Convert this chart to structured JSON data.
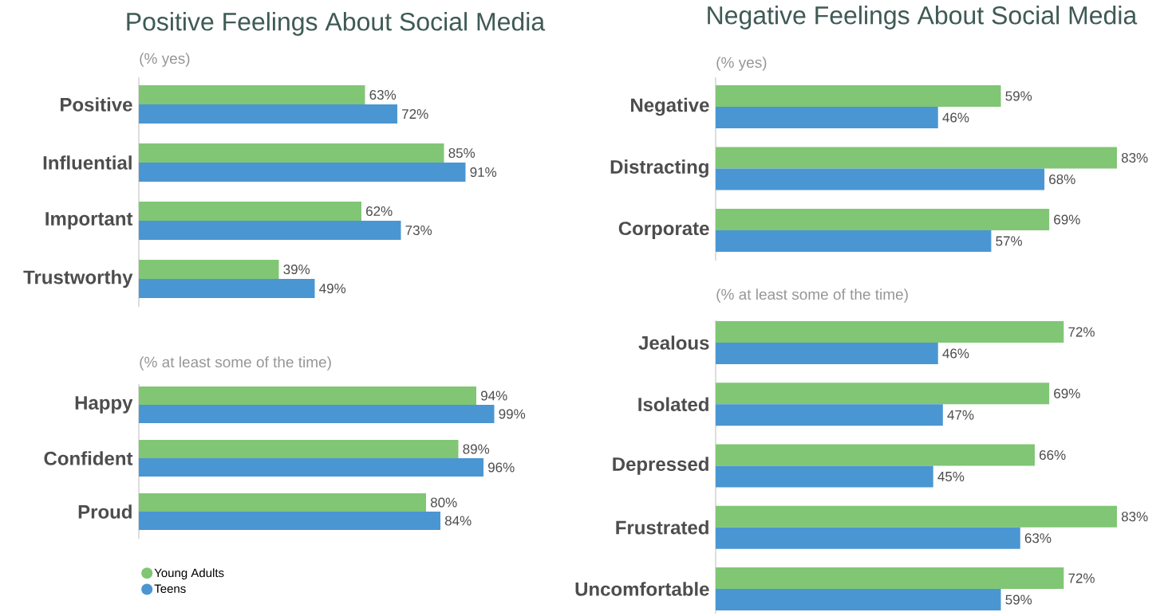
{
  "chart_data": [
    {
      "type": "bar",
      "orientation": "horizontal",
      "title": "Positive Feelings About Social Media",
      "subtitle": "(% yes)",
      "categories": [
        "Positive",
        "Influential",
        "Important",
        "Trustworthy"
      ],
      "series": [
        {
          "color": "#80c675",
          "values": [
            63,
            85,
            62,
            39
          ],
          "value_labels": [
            "63%",
            "85%",
            "62%",
            "39%"
          ]
        },
        {
          "color": "#4a96d2",
          "values": [
            72,
            91,
            73,
            49
          ],
          "value_labels": [
            "72%",
            "91%",
            "73%",
            "49%"
          ]
        }
      ]
    },
    {
      "type": "bar",
      "orientation": "horizontal",
      "subtitle": "(% at least some of the time)",
      "categories": [
        "Happy",
        "Confident",
        "Proud"
      ],
      "legend": "bottom left",
      "series": [
        {
          "name": "Young Adults",
          "color": "#80c675",
          "values": [
            94,
            89,
            80
          ],
          "value_labels": [
            "94%",
            "89%",
            "80%"
          ]
        },
        {
          "name": "Teens",
          "color": "#4a96d2",
          "values": [
            99,
            96,
            84
          ],
          "value_labels": [
            "99%",
            "96%",
            "84%"
          ]
        }
      ]
    },
    {
      "type": "bar",
      "orientation": "horizontal",
      "title": "Negative Feelings About Social Media",
      "subtitle": "(% yes)",
      "categories": [
        "Negative",
        "Distracting",
        "Corporate"
      ],
      "series": [
        {
          "color": "#80c675",
          "values": [
            59,
            83,
            69
          ],
          "value_labels": [
            "59%",
            "83%",
            "69%"
          ]
        },
        {
          "color": "#4a96d2",
          "values": [
            46,
            68,
            57
          ],
          "value_labels": [
            "46%",
            "68%",
            "57%"
          ]
        }
      ]
    },
    {
      "type": "bar",
      "orientation": "horizontal",
      "subtitle": "(% at least some of the time)",
      "categories": [
        "Jealous",
        "Isolated",
        "Depressed",
        "Frustrated",
        "Uncomfortable"
      ],
      "series": [
        {
          "color": "#80c675",
          "values": [
            72,
            69,
            66,
            83,
            72
          ],
          "value_labels": [
            "72%",
            "69%",
            "66%",
            "83%",
            "72%"
          ]
        },
        {
          "color": "#4a96d2",
          "values": [
            46,
            47,
            45,
            63,
            59
          ],
          "value_labels": [
            "46%",
            "47%",
            "45%",
            "63%",
            "59%"
          ]
        }
      ]
    }
  ]
}
